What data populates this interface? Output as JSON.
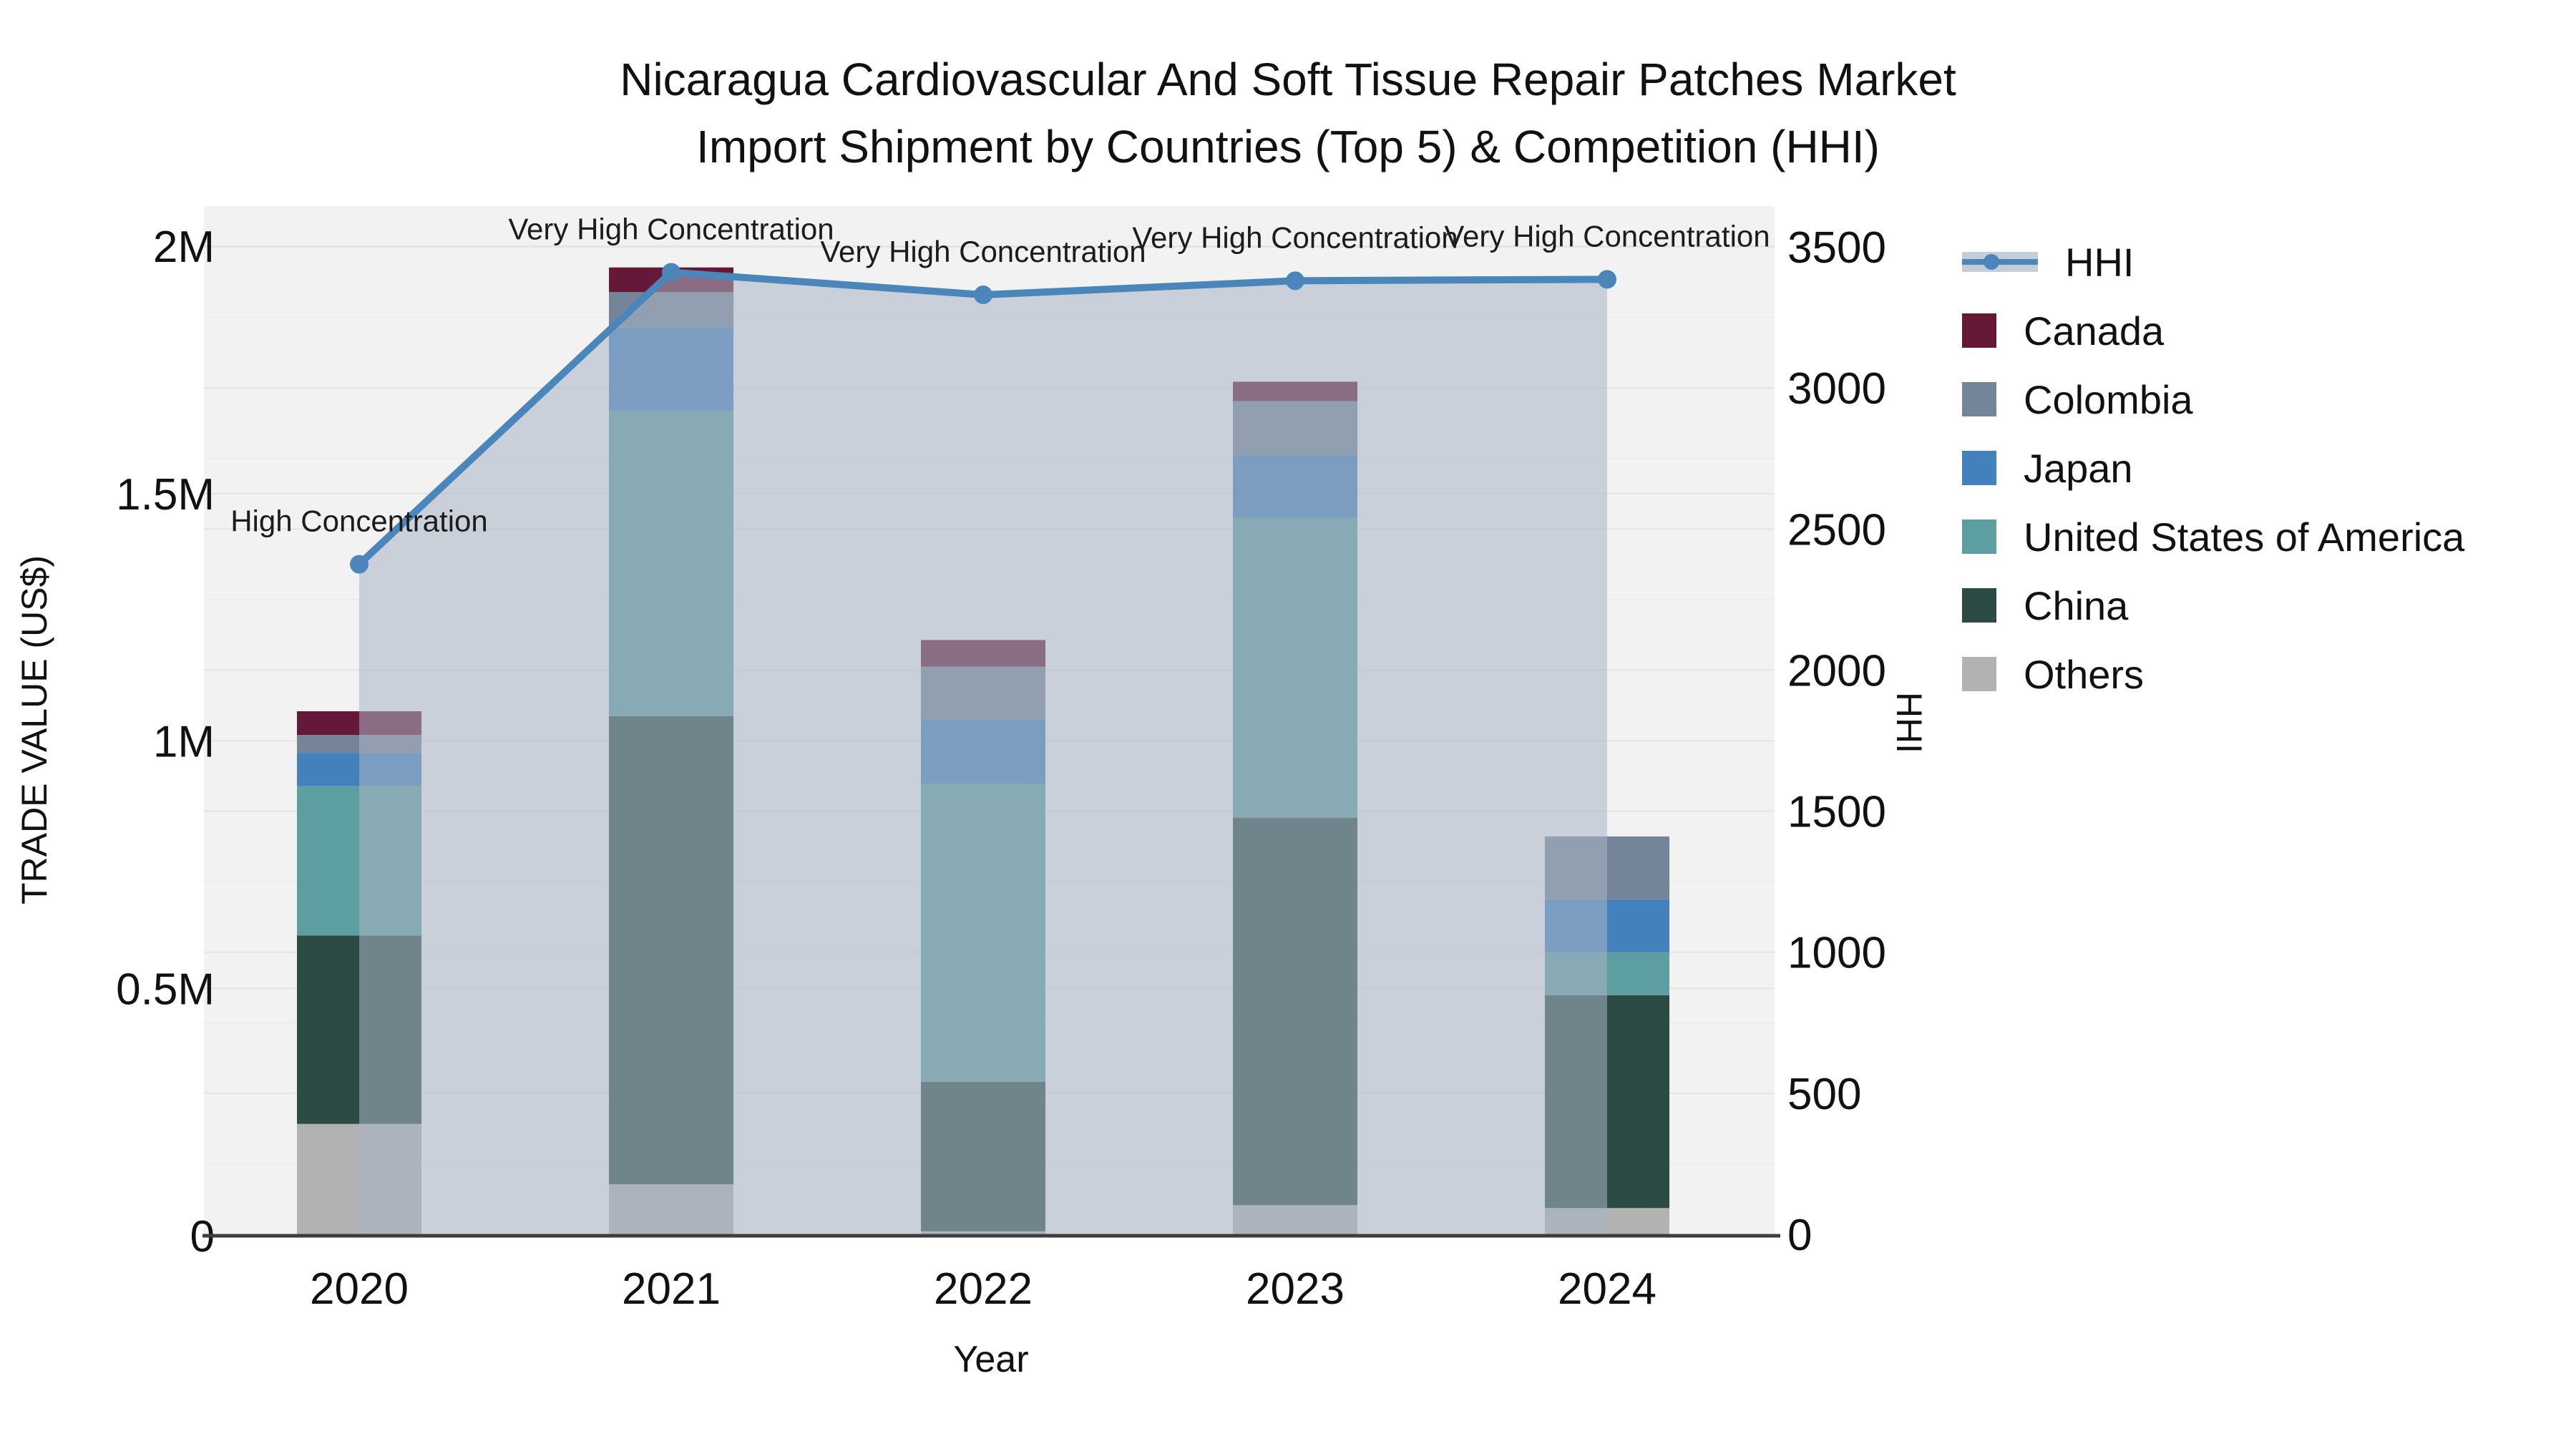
{
  "title": {
    "line1": "Nicaragua Cardiovascular And Soft Tissue Repair Patches Market",
    "line2": "Import Shipment by Countries (Top 5) & Competition (HHI)"
  },
  "axes": {
    "left": {
      "title": "TRADE VALUE (US$)",
      "ticks": [
        {
          "value": 0,
          "label": "0"
        },
        {
          "value": 500000,
          "label": "0.5M"
        },
        {
          "value": 1000000,
          "label": "1M"
        },
        {
          "value": 1500000,
          "label": "1.5M"
        },
        {
          "value": 2000000,
          "label": "2M"
        }
      ],
      "range": [
        0,
        2000000
      ]
    },
    "right": {
      "title": "HHI",
      "ticks": [
        {
          "value": 0,
          "label": "0"
        },
        {
          "value": 500,
          "label": "500"
        },
        {
          "value": 1000,
          "label": "1000"
        },
        {
          "value": 1500,
          "label": "1500"
        },
        {
          "value": 2000,
          "label": "2000"
        },
        {
          "value": 2500,
          "label": "2500"
        },
        {
          "value": 3000,
          "label": "3000"
        },
        {
          "value": 3500,
          "label": "3500"
        }
      ],
      "range": [
        0,
        3500
      ]
    },
    "x": {
      "title": "Year"
    }
  },
  "legend": {
    "items": [
      {
        "label": "HHI",
        "type": "line",
        "color": "#4a86ba"
      },
      {
        "label": "Canada",
        "type": "swatch",
        "color": "#651838"
      },
      {
        "label": "Colombia",
        "type": "swatch",
        "color": "#74859a"
      },
      {
        "label": "Japan",
        "type": "swatch",
        "color": "#4381bd"
      },
      {
        "label": "United States of America",
        "type": "swatch",
        "color": "#5d9ea1"
      },
      {
        "label": "China",
        "type": "swatch",
        "color": "#2c4b45"
      },
      {
        "label": "Others",
        "type": "swatch",
        "color": "#b2b2b2"
      }
    ]
  },
  "colors": {
    "plot_bg": "#f2f2f2",
    "grid_major": "#e4e4e4",
    "grid_minor": "#ececec",
    "axis_line": "#3d3d3d",
    "annotation": "#1c1c1c",
    "hhi_line": "#4a86ba",
    "area_fill": "#aab4c5"
  },
  "chart_data": {
    "type": "bar",
    "subtype": "stacked-bars-with-hhi-line",
    "title": "Nicaragua Cardiovascular And Soft Tissue Repair Patches Market Import Shipment by Countries (Top 5) & Competition (HHI)",
    "xlabel": "Year",
    "ylabel": "TRADE VALUE (US$)",
    "y2label": "HHI",
    "ylim": [
      0,
      2000000
    ],
    "y2lim": [
      0,
      3500
    ],
    "grid": true,
    "legend_position": "right",
    "categories": [
      "2020",
      "2021",
      "2022",
      "2023",
      "2024"
    ],
    "stack_order": [
      "Others",
      "China",
      "United States of America",
      "Japan",
      "Colombia",
      "Canada"
    ],
    "series": [
      {
        "name": "Canada",
        "color": "#651838",
        "values": [
          48000,
          50000,
          54000,
          39000,
          0
        ]
      },
      {
        "name": "Colombia",
        "color": "#74859a",
        "values": [
          36000,
          72000,
          107000,
          109000,
          127000
        ]
      },
      {
        "name": "Japan",
        "color": "#4381bd",
        "values": [
          67000,
          168000,
          129000,
          127000,
          107000
        ]
      },
      {
        "name": "United States of America",
        "color": "#5d9ea1",
        "values": [
          302000,
          617000,
          603000,
          606000,
          87000
        ]
      },
      {
        "name": "China",
        "color": "#2c4b45",
        "values": [
          381000,
          946000,
          302000,
          783000,
          430000
        ]
      },
      {
        "name": "Others",
        "color": "#b2b2b2",
        "values": [
          226000,
          104000,
          9000,
          62000,
          56000
        ]
      }
    ],
    "line_series": {
      "name": "HHI",
      "axis": "right",
      "color": "#4a86ba",
      "area_fill": "#aab4c5",
      "area_opacity": 0.55,
      "values": [
        2375,
        3410,
        3330,
        3380,
        3385
      ]
    },
    "annotations": [
      {
        "category": "2020",
        "text": "High Concentration"
      },
      {
        "category": "2021",
        "text": "Very High Concentration"
      },
      {
        "category": "2022",
        "text": "Very High Concentration"
      },
      {
        "category": "2023",
        "text": "Very High Concentration"
      },
      {
        "category": "2024",
        "text": "Very High Concentration"
      }
    ]
  }
}
